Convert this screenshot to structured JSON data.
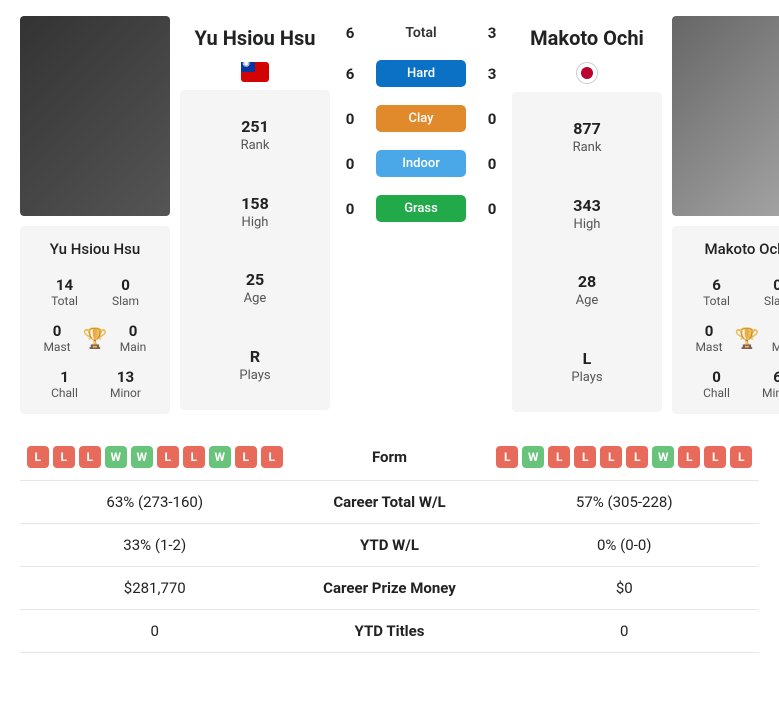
{
  "players": {
    "p1": {
      "name": "Yu Hsiou Hsu",
      "flag": "tw",
      "rank": "251",
      "high": "158",
      "age": "25",
      "plays": "R",
      "total": "14",
      "slam": "0",
      "mast": "0",
      "main": "0",
      "chall": "1",
      "minor": "13",
      "form": [
        "L",
        "L",
        "L",
        "W",
        "W",
        "L",
        "L",
        "W",
        "L",
        "L"
      ],
      "career_wl": "63% (273-160)",
      "ytd_wl": "33% (1-2)",
      "prize": "$281,770",
      "ytd_titles": "0"
    },
    "p2": {
      "name": "Makoto Ochi",
      "flag": "jp",
      "rank": "877",
      "high": "343",
      "age": "28",
      "plays": "L",
      "total": "6",
      "slam": "0",
      "mast": "0",
      "main": "0",
      "chall": "0",
      "minor": "6",
      "form": [
        "L",
        "W",
        "L",
        "L",
        "L",
        "L",
        "W",
        "L",
        "L",
        "L"
      ],
      "career_wl": "57% (305-228)",
      "ytd_wl": "0% (0-0)",
      "prize": "$0",
      "ytd_titles": "0"
    }
  },
  "labels": {
    "rank": "Rank",
    "high": "High",
    "age": "Age",
    "plays": "Plays",
    "total": "Total",
    "slam": "Slam",
    "mast": "Mast",
    "main": "Main",
    "chall": "Chall",
    "minor": "Minor",
    "form": "Form",
    "career_wl": "Career Total W/L",
    "ytd_wl": "YTD W/L",
    "prize": "Career Prize Money",
    "ytd_titles": "YTD Titles"
  },
  "surfaces": {
    "total": {
      "label": "Total",
      "p1": "6",
      "p2": "3"
    },
    "hard": {
      "label": "Hard",
      "p1": "6",
      "p2": "3",
      "color": "#0a71c5"
    },
    "clay": {
      "label": "Clay",
      "p1": "0",
      "p2": "0",
      "color": "#e08a2b"
    },
    "indoor": {
      "label": "Indoor",
      "p1": "0",
      "p2": "0",
      "color": "#4aa8e8"
    },
    "grass": {
      "label": "Grass",
      "p1": "0",
      "p2": "0",
      "color": "#22a94a"
    }
  }
}
